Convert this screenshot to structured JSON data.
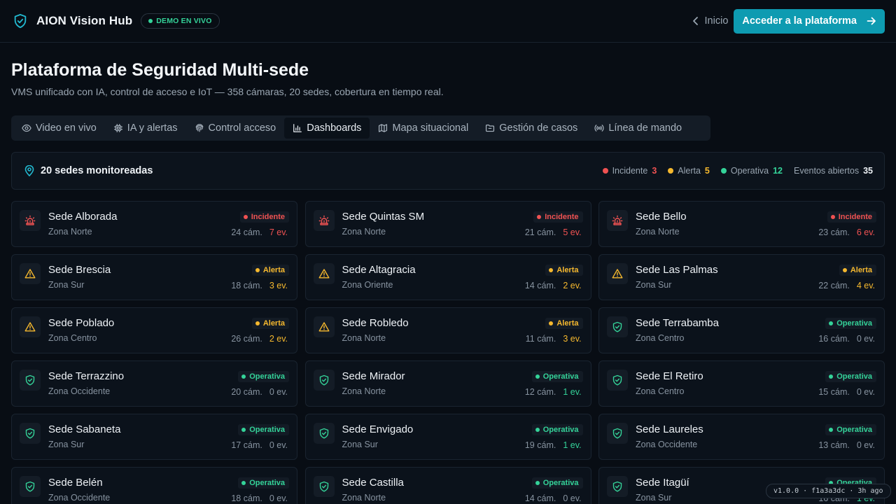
{
  "header": {
    "app_name": "AION Vision Hub",
    "badge": "DEMO EN VIVO",
    "back_label": "Inicio",
    "cta_label": "Acceder a la plataforma"
  },
  "page": {
    "title": "Plataforma de Seguridad Multi-sede",
    "subtitle": "VMS unificado con IA, control de acceso e IoT — 358 cámaras, 20 sedes, cobertura en tiempo real."
  },
  "tabs": [
    {
      "label": "Video en vivo",
      "icon": "eye-icon",
      "active": false
    },
    {
      "label": "IA y alertas",
      "icon": "cpu-icon",
      "active": false
    },
    {
      "label": "Control acceso",
      "icon": "fingerprint-icon",
      "active": false
    },
    {
      "label": "Dashboards",
      "icon": "bar-chart-icon",
      "active": true
    },
    {
      "label": "Mapa situacional",
      "icon": "map-icon",
      "active": false
    },
    {
      "label": "Gestión de casos",
      "icon": "folder-icon",
      "active": false
    },
    {
      "label": "Línea de mando",
      "icon": "broadcast-icon",
      "active": false
    }
  ],
  "summary": {
    "title": "20 sedes monitoreadas",
    "legend": [
      {
        "label": "Incidente",
        "count": "3",
        "status": "incident"
      },
      {
        "label": "Alerta",
        "count": "5",
        "status": "alert"
      },
      {
        "label": "Operativa",
        "count": "12",
        "status": "ok"
      }
    ],
    "events_label": "Eventos abiertos",
    "events_count": "35"
  },
  "status_labels": {
    "incident": "Incidente",
    "alert": "Alerta",
    "ok": "Operativa"
  },
  "colors": {
    "incident": "#f05252",
    "alert": "#f5b82e",
    "ok": "#34d399",
    "accent": "#0e9bb1"
  },
  "sites": [
    {
      "name": "Sede Alborada",
      "zone": "Zona Norte",
      "status": "incident",
      "cams": "24 cám.",
      "events": "7 ev."
    },
    {
      "name": "Sede Quintas SM",
      "zone": "Zona Norte",
      "status": "incident",
      "cams": "21 cám.",
      "events": "5 ev."
    },
    {
      "name": "Sede Bello",
      "zone": "Zona Norte",
      "status": "incident",
      "cams": "23 cám.",
      "events": "6 ev."
    },
    {
      "name": "Sede Brescia",
      "zone": "Zona Sur",
      "status": "alert",
      "cams": "18 cám.",
      "events": "3 ev."
    },
    {
      "name": "Sede Altagracia",
      "zone": "Zona Oriente",
      "status": "alert",
      "cams": "14 cám.",
      "events": "2 ev."
    },
    {
      "name": "Sede Las Palmas",
      "zone": "Zona Sur",
      "status": "alert",
      "cams": "22 cám.",
      "events": "4 ev."
    },
    {
      "name": "Sede Poblado",
      "zone": "Zona Centro",
      "status": "alert",
      "cams": "26 cám.",
      "events": "2 ev."
    },
    {
      "name": "Sede Robledo",
      "zone": "Zona Norte",
      "status": "alert",
      "cams": "11 cám.",
      "events": "3 ev."
    },
    {
      "name": "Sede Terrabamba",
      "zone": "Zona Centro",
      "status": "ok",
      "cams": "16 cám.",
      "events": "0 ev."
    },
    {
      "name": "Sede Terrazzino",
      "zone": "Zona Occidente",
      "status": "ok",
      "cams": "20 cám.",
      "events": "0 ev."
    },
    {
      "name": "Sede Mirador",
      "zone": "Zona Norte",
      "status": "ok",
      "cams": "12 cám.",
      "events": "1 ev."
    },
    {
      "name": "Sede El Retiro",
      "zone": "Zona Centro",
      "status": "ok",
      "cams": "15 cám.",
      "events": "0 ev."
    },
    {
      "name": "Sede Sabaneta",
      "zone": "Zona Sur",
      "status": "ok",
      "cams": "17 cám.",
      "events": "0 ev."
    },
    {
      "name": "Sede Envigado",
      "zone": "Zona Sur",
      "status": "ok",
      "cams": "19 cám.",
      "events": "1 ev."
    },
    {
      "name": "Sede Laureles",
      "zone": "Zona Occidente",
      "status": "ok",
      "cams": "13 cám.",
      "events": "0 ev."
    },
    {
      "name": "Sede Belén",
      "zone": "Zona Occidente",
      "status": "ok",
      "cams": "18 cám.",
      "events": "0 ev."
    },
    {
      "name": "Sede Castilla",
      "zone": "Zona Norte",
      "status": "ok",
      "cams": "14 cám.",
      "events": "0 ev."
    },
    {
      "name": "Sede Itagüí",
      "zone": "Zona Sur",
      "status": "ok",
      "cams": "16 cám.",
      "events": "1 ev."
    }
  ],
  "version": "v1.0.0 · f1a3a3dc · 3h ago"
}
